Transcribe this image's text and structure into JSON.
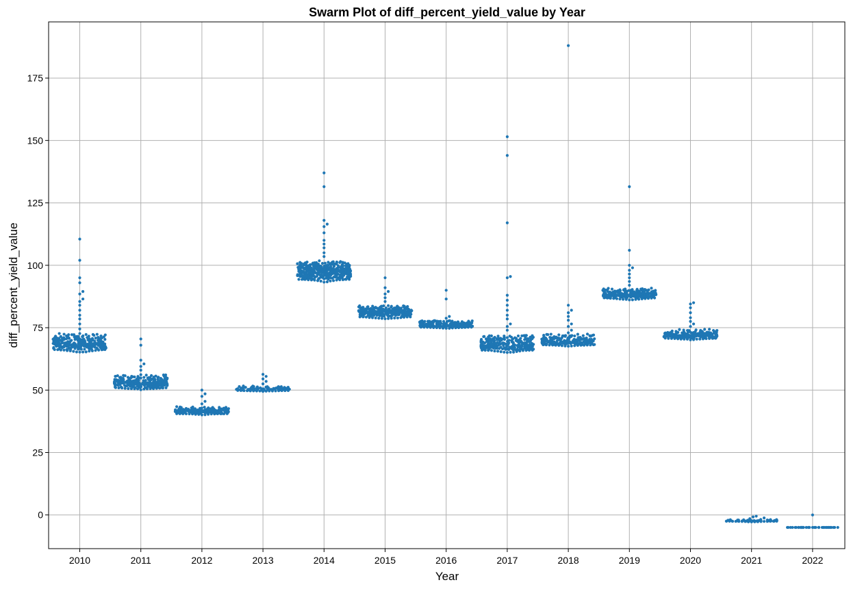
{
  "chart_data": {
    "type": "scatter",
    "subtype": "swarm",
    "title": "Swarm Plot of diff_percent_yield_value by Year",
    "xlabel": "Year",
    "ylabel": "diff_percent_yield_value",
    "categories": [
      "2010",
      "2011",
      "2012",
      "2013",
      "2014",
      "2015",
      "2016",
      "2017",
      "2018",
      "2019",
      "2020",
      "2021",
      "2022"
    ],
    "yticks": [
      0,
      25,
      50,
      75,
      100,
      125,
      150,
      175
    ],
    "ylim": [
      -13.5,
      197.5
    ],
    "grid": true,
    "legend": "none",
    "color": "#1f77b4",
    "distributions": [
      {
        "category": "2010",
        "min": 65.0,
        "q1": 66.5,
        "median": 68.5,
        "q3": 71.0,
        "max": 73.0,
        "n": 300,
        "outliers": [
          74.5,
          76.5,
          78.5,
          80.0,
          82.0,
          84.0,
          85.5,
          86.5,
          88.5,
          89.5,
          93.0,
          95.0,
          102.0,
          110.5
        ]
      },
      {
        "category": "2011",
        "min": 50.0,
        "q1": 51.0,
        "median": 53.0,
        "q3": 55.0,
        "max": 56.5,
        "n": 280,
        "outliers": [
          58.0,
          59.5,
          60.5,
          62.0,
          68.0,
          70.5
        ]
      },
      {
        "category": "2012",
        "min": 40.0,
        "q1": 40.7,
        "median": 41.5,
        "q3": 42.5,
        "max": 43.5,
        "n": 200,
        "outliers": [
          44.5,
          45.5,
          47.5,
          48.5,
          50.0
        ]
      },
      {
        "category": "2013",
        "min": 49.3,
        "q1": 49.8,
        "median": 50.3,
        "q3": 51.0,
        "max": 51.8,
        "n": 110,
        "outliers": [
          52.5,
          53.5,
          54.5,
          55.5,
          56.3
        ]
      },
      {
        "category": "2014",
        "min": 93.0,
        "q1": 95.0,
        "median": 97.5,
        "q3": 100.0,
        "max": 102.0,
        "n": 450,
        "outliers": [
          103.5,
          105.0,
          107.0,
          108.5,
          110.0,
          113.0,
          115.5,
          116.5,
          118.0,
          131.5,
          137.0
        ]
      },
      {
        "category": "2015",
        "min": 78.5,
        "q1": 80.0,
        "median": 81.5,
        "q3": 82.8,
        "max": 84.0,
        "n": 300,
        "outliers": [
          85.5,
          87.0,
          88.5,
          89.5,
          91.0,
          95.0
        ]
      },
      {
        "category": "2016",
        "min": 74.5,
        "q1": 75.3,
        "median": 76.0,
        "q3": 77.0,
        "max": 78.0,
        "n": 230,
        "outliers": [
          78.8,
          79.5,
          86.5,
          90.0
        ]
      },
      {
        "category": "2017",
        "min": 65.0,
        "q1": 66.0,
        "median": 68.0,
        "q3": 70.5,
        "max": 73.0,
        "n": 300,
        "outliers": [
          74.0,
          75.5,
          76.5,
          78.5,
          80.0,
          82.0,
          84.0,
          86.0,
          88.0,
          95.0,
          95.5,
          117.0,
          144.0,
          151.5
        ]
      },
      {
        "category": "2018",
        "min": 67.3,
        "q1": 68.0,
        "median": 69.5,
        "q3": 71.5,
        "max": 73.0,
        "n": 230,
        "outliers": [
          74.0,
          75.5,
          76.5,
          78.0,
          79.5,
          81.0,
          82.0,
          84.0,
          188.0
        ]
      },
      {
        "category": "2019",
        "min": 86.0,
        "q1": 87.0,
        "median": 88.5,
        "q3": 90.0,
        "max": 91.2,
        "n": 280,
        "outliers": [
          92.0,
          93.5,
          95.0,
          96.5,
          98.0,
          99.0,
          100.0,
          106.0,
          131.5
        ]
      },
      {
        "category": "2020",
        "min": 70.0,
        "q1": 70.8,
        "median": 72.0,
        "q3": 73.2,
        "max": 74.5,
        "n": 240,
        "outliers": [
          75.5,
          76.5,
          77.5,
          79.0,
          81.0,
          83.0,
          84.5,
          85.0
        ]
      },
      {
        "category": "2021",
        "min": -2.8,
        "q1": -2.6,
        "median": -2.4,
        "q3": -2.1,
        "max": -1.8,
        "n": 55,
        "outliers": [
          -1.5,
          -1.2,
          -0.8,
          -0.5
        ]
      },
      {
        "category": "2022",
        "min": -5.0,
        "q1": -5.0,
        "median": -5.0,
        "q3": -5.0,
        "max": -5.0,
        "n": 40,
        "outliers": [
          0.0
        ]
      }
    ]
  }
}
